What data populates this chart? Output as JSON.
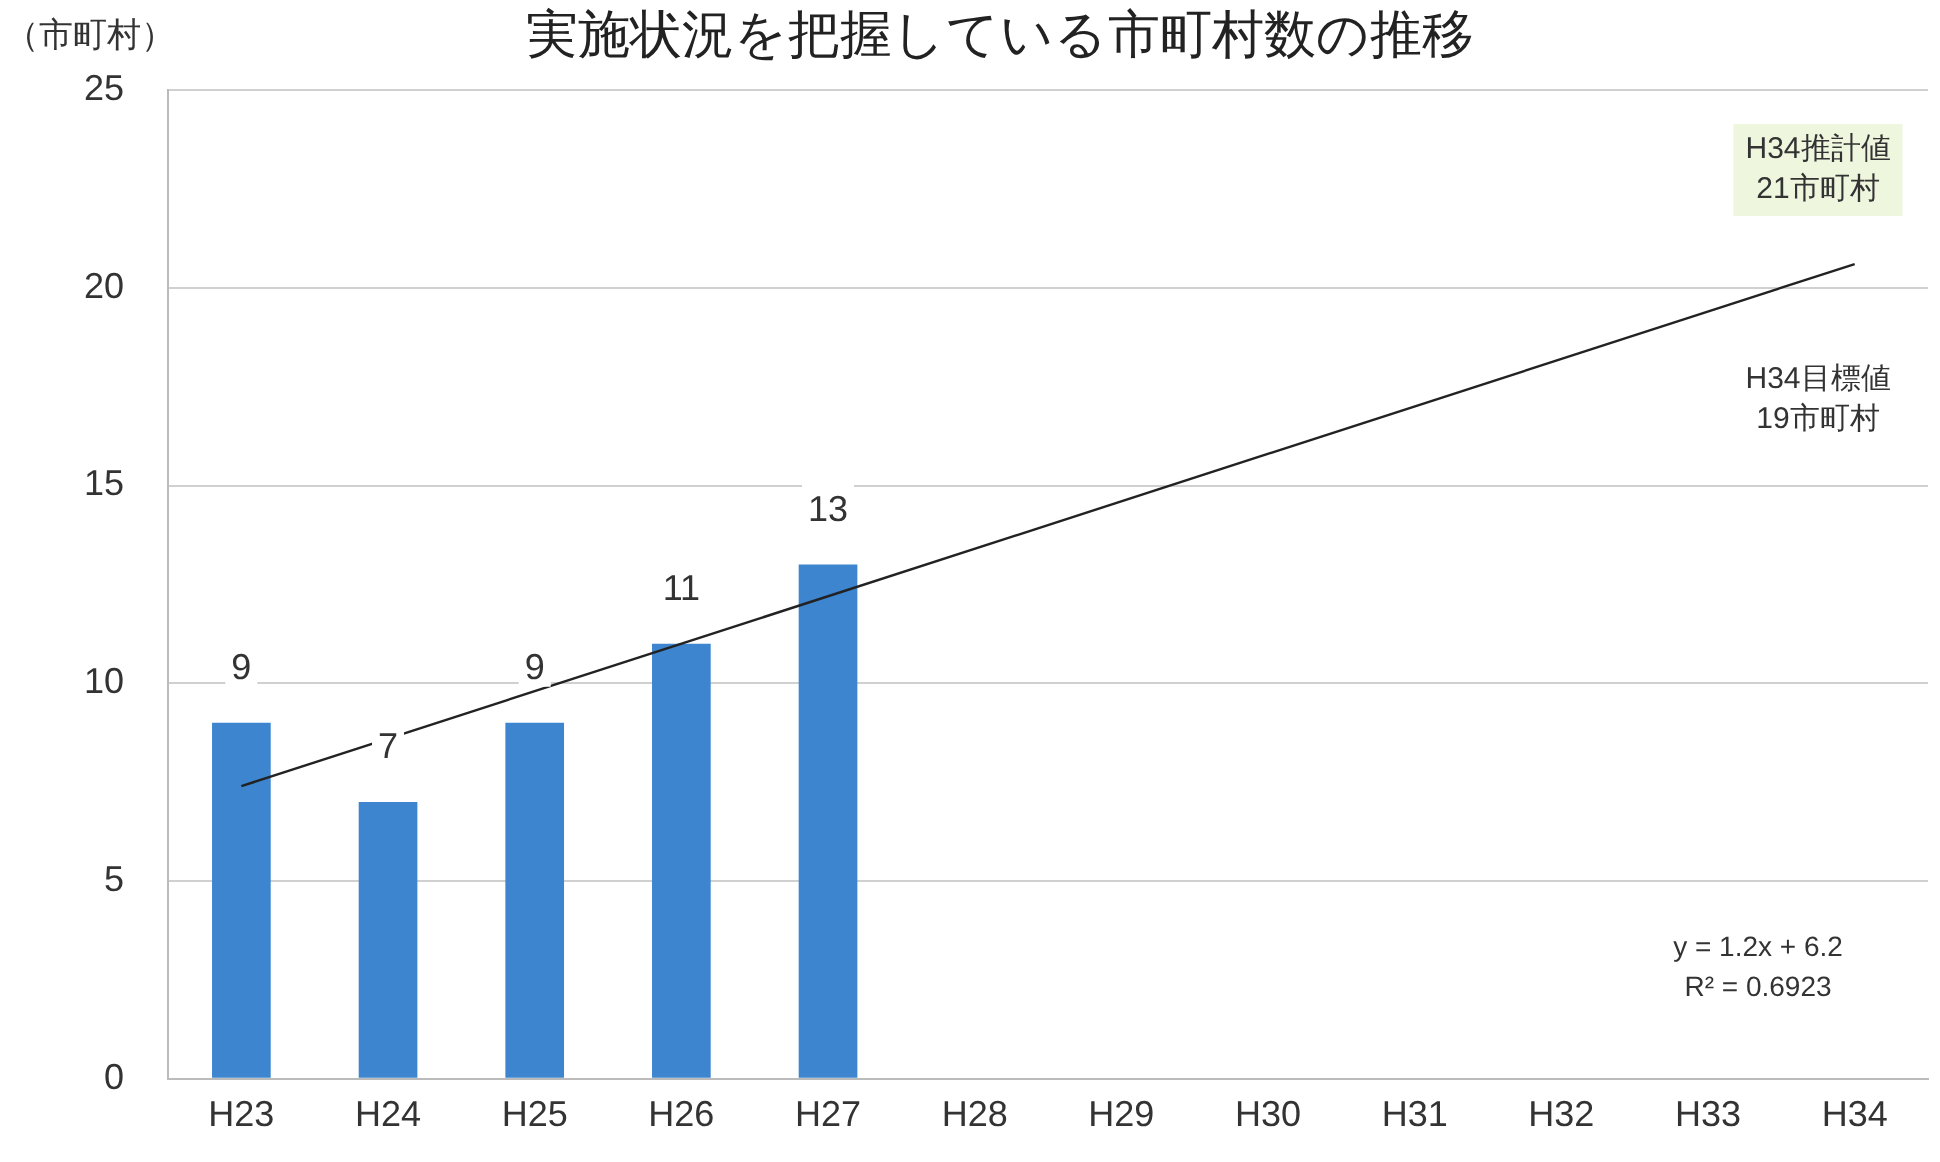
{
  "chart_data": {
    "type": "bar",
    "title": "実施状況を把握している市町村数の推移",
    "ylabel": "（市町村）",
    "categories": [
      "H23",
      "H24",
      "H25",
      "H26",
      "H27",
      "H28",
      "H29",
      "H30",
      "H31",
      "H32",
      "H33",
      "H34"
    ],
    "series": [
      {
        "color": "#3d85cf",
        "values": [
          9,
          7,
          9,
          11,
          13,
          null,
          null,
          null,
          null,
          null,
          null,
          null
        ],
        "value_labels": [
          "9",
          "7",
          "9",
          "11",
          "13",
          null,
          null,
          null,
          null,
          null,
          null,
          null
        ]
      },
      {
        "type": "line",
        "color": "#222222",
        "x": [
          "H23",
          "H34"
        ],
        "values": [
          7.4,
          20.6
        ],
        "marker": "none"
      }
    ],
    "ylim": [
      0,
      25
    ],
    "yticks": [
      0,
      5,
      10,
      15,
      20,
      25
    ],
    "grid": "y",
    "legend": false,
    "annotations": [
      "H34推計値\n21市町村",
      "H34目標値\n19市町村",
      "y = 1.2x + 6.2",
      "R² = 0.6923"
    ]
  }
}
